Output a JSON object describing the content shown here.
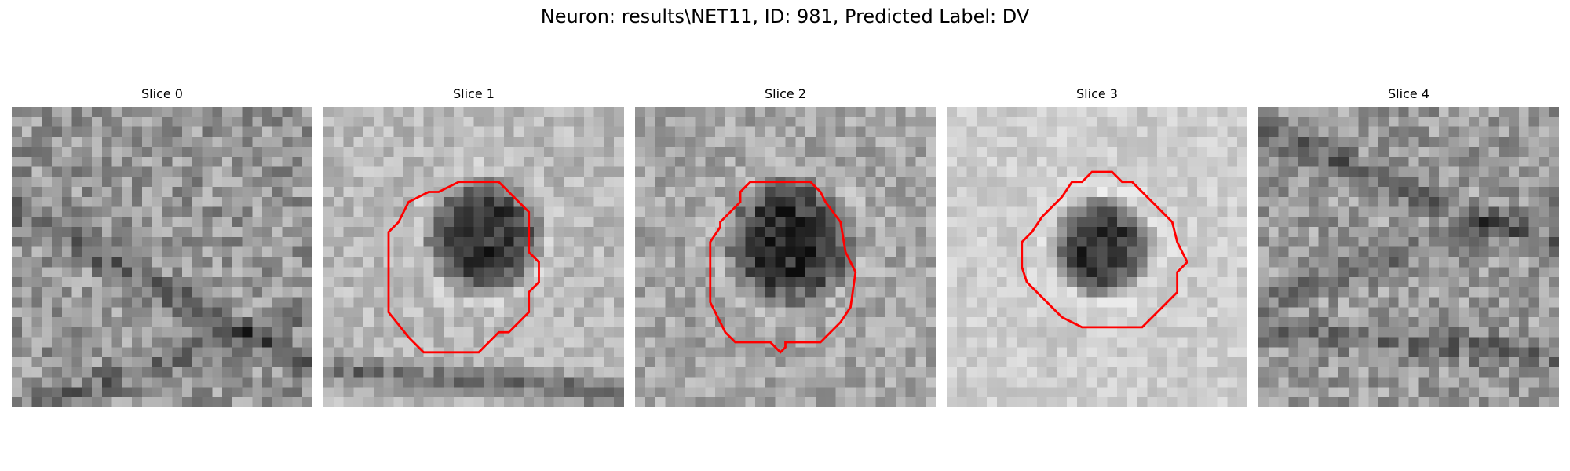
{
  "figure": {
    "title": "Neuron: results\\NET11, ID: 981, Predicted Label: DV"
  },
  "colors": {
    "contour": "#ff0000",
    "background": "#ffffff"
  },
  "slices": [
    {
      "title": "Slice 0",
      "has_contour": false,
      "pattern": "noise"
    },
    {
      "title": "Slice 1",
      "has_contour": true,
      "pattern": "dark-blob-center-right"
    },
    {
      "title": "Slice 2",
      "has_contour": true,
      "pattern": "dark-blob-center"
    },
    {
      "title": "Slice 3",
      "has_contour": true,
      "pattern": "dark-blob-center-with-bright-surround"
    },
    {
      "title": "Slice 4",
      "has_contour": false,
      "pattern": "noise"
    }
  ]
}
